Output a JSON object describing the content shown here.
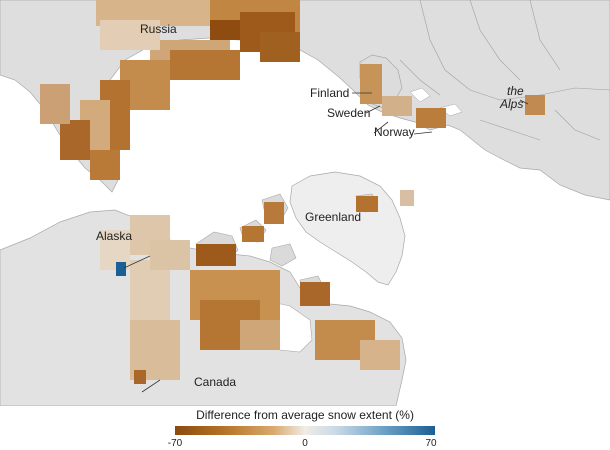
{
  "map": {
    "labels": {
      "russia": "Russia",
      "finland": "Finland",
      "sweden": "Sweden",
      "norway": "Norway",
      "the_alps_1": "the",
      "the_alps_2": "Alps",
      "greenland": "Greenland",
      "alaska": "Alaska",
      "canada": "Canada"
    }
  },
  "legend": {
    "title": "Difference from average snow extent (%)",
    "ticks": [
      "-70",
      "0",
      "70"
    ],
    "scale_min": -70,
    "scale_max": 70,
    "colors": {
      "strong_decrease": "#8b4a0e",
      "decrease": "#c99150",
      "neutral": "#efeae4",
      "increase": "#1a5f95"
    }
  },
  "colors": {
    "land": "#dcdcdc",
    "snow_area": "#ececec",
    "ocean": "#ffffff",
    "borders": "#9a9a9a"
  }
}
